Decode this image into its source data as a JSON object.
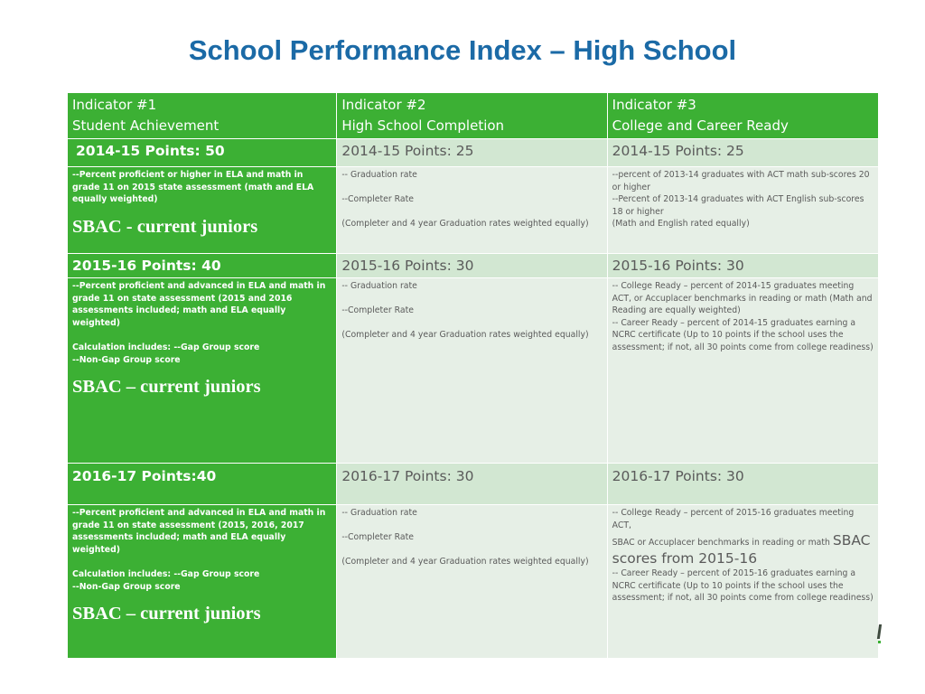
{
  "title": "School Performance Index – High School",
  "headers": [
    {
      "line1": "Indicator #1",
      "line2": "Student Achievement"
    },
    {
      "line1": "Indicator #2",
      "line2": "High School Completion"
    },
    {
      "line1": "Indicator #3",
      "line2": "College and Career Ready"
    }
  ],
  "year_2014_15": {
    "points": [
      "2014-15 Points: 50",
      "2014-15 Points: 25",
      "2014-15 Points: 25"
    ],
    "achievement": {
      "line1": "--Percent proficient or higher in ELA and math in grade 11 on 2015 state assessment (math and ELA equally weighted)",
      "sbac": "SBAC  - current juniors"
    },
    "completion": {
      "line1": "-- Graduation rate",
      "line2": "--Completer Rate",
      "line3": "(Completer and 4 year Graduation rates weighted equally)"
    },
    "ccr": {
      "line1": "--percent of 2013-14 graduates with ACT math sub-scores 20 or higher",
      "line2": "--Percent of 2013-14 graduates with ACT English sub-scores 18 or higher",
      "line3": "(Math and English rated equally)"
    }
  },
  "year_2015_16": {
    "points": [
      "2015-16 Points: 40",
      "2015-16 Points: 30",
      "2015-16 Points: 30"
    ],
    "achievement": {
      "line1": "--Percent proficient and advanced in ELA and math in grade 11 on state assessment (2015 and 2016 assessments included; math and ELA equally weighted)",
      "calc1": "Calculation includes: --Gap Group score",
      "calc2": "--Non-Gap Group score",
      "sbac": "SBAC – current juniors"
    },
    "completion": {
      "line1": "-- Graduation rate",
      "line2": "--Completer Rate",
      "line3": "(Completer and 4 year Graduation rates weighted equally)"
    },
    "ccr": {
      "line1": "-- College Ready – percent of 2014-15 graduates meeting ACT, or Accuplacer benchmarks in reading or math (Math and Reading are equally weighted)",
      "line2": "-- Career Ready – percent of 2014-15 graduates earning a NCRC certificate (Up to 10 points if the school uses the assessment; if not, all 30 points come from college readiness)"
    }
  },
  "year_2016_17": {
    "points": [
      "2016-17 Points:40",
      "2016-17 Points: 30",
      "2016-17 Points: 30"
    ],
    "achievement": {
      "line1": "--Percent proficient and advanced in ELA and math in grade 11 on state assessment (2015, 2016, 2017 assessments included; math and ELA equally weighted)",
      "calc1": "Calculation includes: --Gap Group score",
      "calc2": "--Non-Gap Group score",
      "sbac": "SBAC – current juniors"
    },
    "completion": {
      "line1": "-- Graduation rate",
      "line2": "--Completer Rate",
      "line3": "(Completer and 4 year Graduation rates weighted equally)"
    },
    "ccr": {
      "line1": "-- College Ready – percent of 2015-16 graduates meeting ACT,",
      "line2_small": "SBAC or Accuplacer benchmarks in reading or math",
      "line2_big": "SBAC scores from 2015-16",
      "line3": "-- Career Ready – percent of 2015-16 graduates earning a NCRC certificate (Up to 10 points if the school uses the assessment; if not, all 30 points come from college readiness)"
    }
  },
  "colors": {
    "title": "#1b6aa6",
    "green": "#3cb034",
    "points_bg": "#d2e7d2",
    "desc_bg": "#e6efe6",
    "body_text": "#5a5a5a"
  }
}
